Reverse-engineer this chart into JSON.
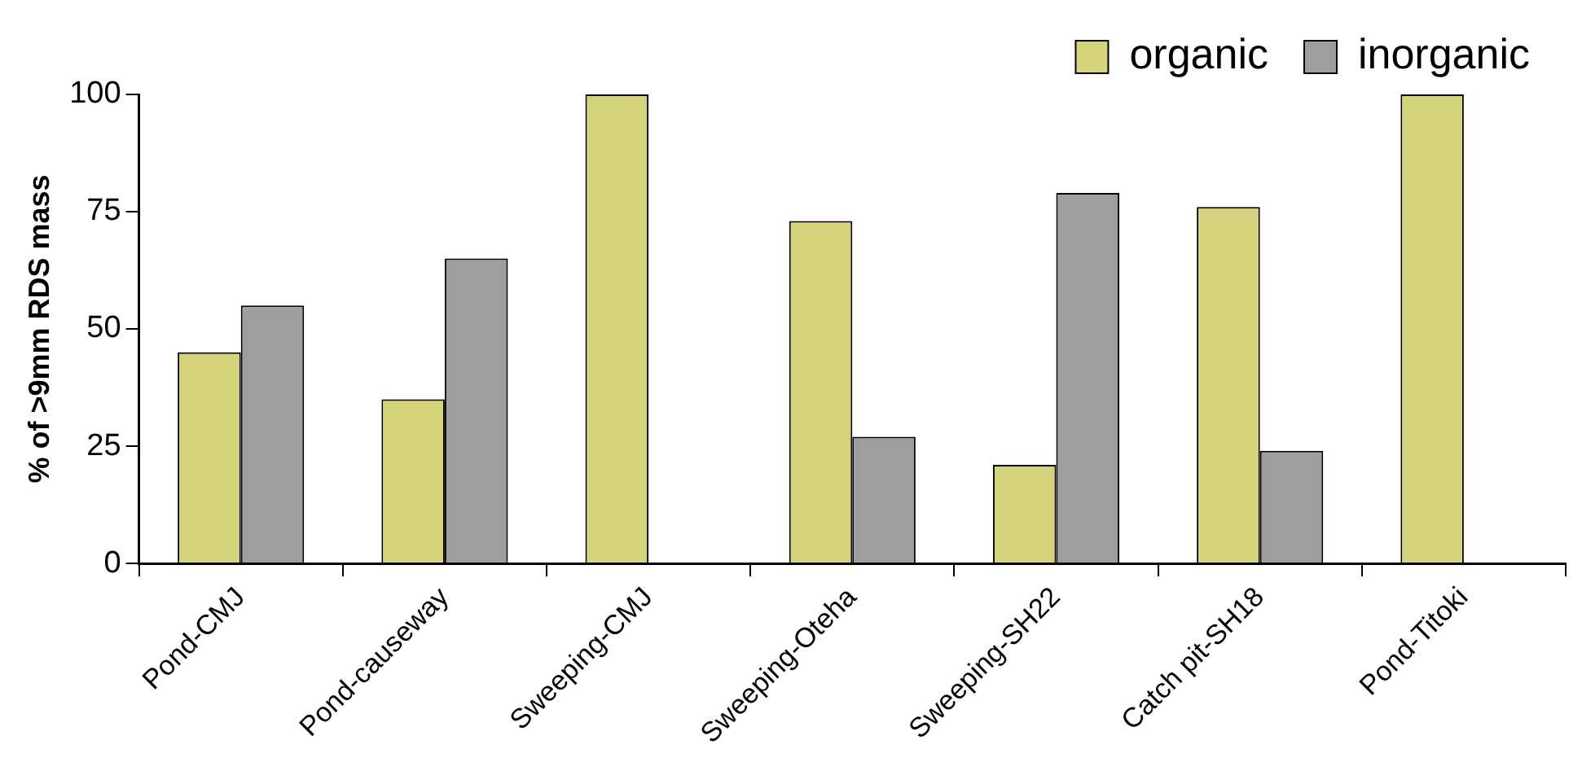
{
  "chart_data": {
    "type": "bar",
    "ylabel": "% of >9mm RDS mass",
    "categories": [
      "Pond-CMJ",
      "Pond-causeway",
      "Sweeping-CMJ",
      "Sweeping-Oteha",
      "Sweeping-SH22",
      "Catch pit-SH18",
      "Pond-Titoki"
    ],
    "series": [
      {
        "name": "organic",
        "color": "#d4d27a",
        "values": [
          45,
          35,
          100,
          73,
          21,
          76,
          100
        ]
      },
      {
        "name": "inorganic",
        "color": "#9e9e9e",
        "values": [
          55,
          65,
          0,
          27,
          79,
          24,
          0
        ]
      }
    ],
    "ylim": [
      0,
      100
    ],
    "yticks": [
      0,
      25,
      50,
      75,
      100
    ],
    "grid": false,
    "legend": "top right"
  }
}
